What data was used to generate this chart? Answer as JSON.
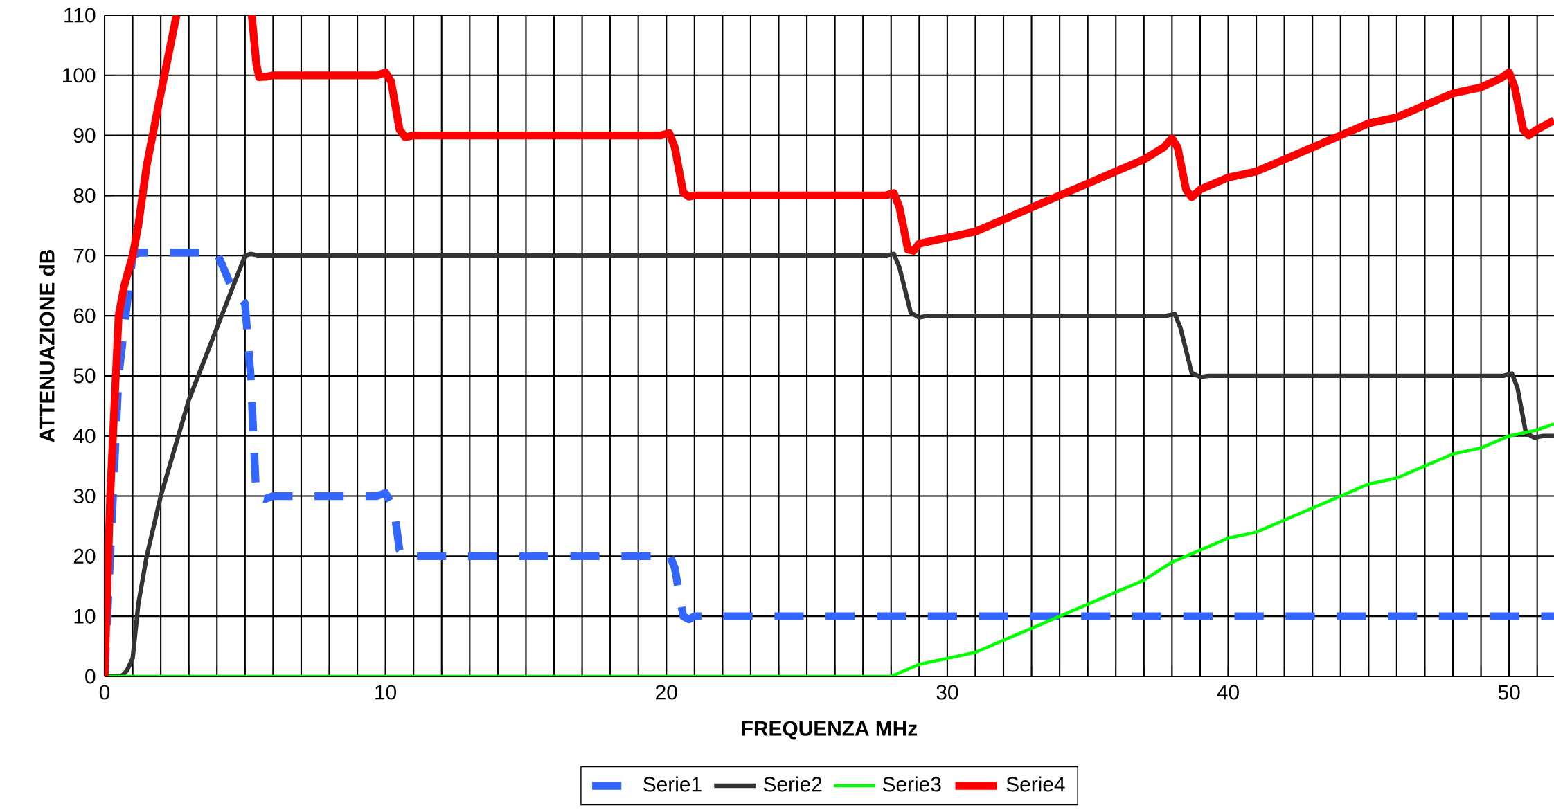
{
  "chart_data": {
    "type": "line",
    "xlabel": "FREQUENZA MHz",
    "ylabel": "ATTENUAZIONE dB",
    "xlim": [
      0,
      51.6
    ],
    "ylim": [
      0,
      110
    ],
    "xticks": [
      0,
      {
        "value": 1,
        "label": null
      },
      {
        "value": 2,
        "label": null
      },
      {
        "value": 3,
        "label": null
      },
      {
        "value": 4,
        "label": null
      },
      {
        "value": 5,
        "label": null
      },
      {
        "value": 6,
        "label": null
      },
      {
        "value": 7,
        "label": null
      },
      {
        "value": 8,
        "label": null
      },
      {
        "value": 9,
        "label": null
      },
      10,
      {
        "value": 11,
        "label": null
      },
      {
        "value": 12,
        "label": null
      },
      {
        "value": 13,
        "label": null
      },
      {
        "value": 14,
        "label": null
      },
      {
        "value": 15,
        "label": null
      },
      {
        "value": 16,
        "label": null
      },
      {
        "value": 17,
        "label": null
      },
      {
        "value": 18,
        "label": null
      },
      {
        "value": 19,
        "label": null
      },
      20,
      {
        "value": 21,
        "label": null
      },
      {
        "value": 22,
        "label": null
      },
      {
        "value": 23,
        "label": null
      },
      {
        "value": 24,
        "label": null
      },
      {
        "value": 25,
        "label": null
      },
      {
        "value": 26,
        "label": null
      },
      {
        "value": 27,
        "label": null
      },
      {
        "value": 28,
        "label": null
      },
      {
        "value": 29,
        "label": null
      },
      30,
      {
        "value": 31,
        "label": null
      },
      {
        "value": 32,
        "label": null
      },
      {
        "value": 33,
        "label": null
      },
      {
        "value": 34,
        "label": null
      },
      {
        "value": 35,
        "label": null
      },
      {
        "value": 36,
        "label": null
      },
      {
        "value": 37,
        "label": null
      },
      {
        "value": 38,
        "label": null
      },
      {
        "value": 39,
        "label": null
      },
      40,
      {
        "value": 41,
        "label": null
      },
      {
        "value": 42,
        "label": null
      },
      {
        "value": 43,
        "label": null
      },
      {
        "value": 44,
        "label": null
      },
      {
        "value": 45,
        "label": null
      },
      {
        "value": 46,
        "label": null
      },
      {
        "value": 47,
        "label": null
      },
      {
        "value": 48,
        "label": null
      },
      {
        "value": 49,
        "label": null
      },
      50,
      {
        "value": 51,
        "label": null
      }
    ],
    "yticks": [
      0,
      10,
      20,
      30,
      40,
      50,
      60,
      70,
      80,
      90,
      100,
      110
    ],
    "grid": true,
    "legend": "bottom",
    "series": [
      {
        "name": "Serie1",
        "color": "#3366ff",
        "line_style": "dashed",
        "x": [
          0,
          0.5,
          1,
          1.2,
          4,
          4.5,
          5,
          5.2,
          5.4,
          5.7,
          6,
          9.7,
          10,
          10.3,
          10.5,
          10.8,
          11,
          19.8,
          20.1,
          20.3,
          20.6,
          20.8,
          21,
          51.6
        ],
        "values": [
          0,
          50,
          70,
          70.5,
          70.5,
          65,
          62,
          50,
          30,
          29.5,
          30,
          30,
          30.5,
          28,
          21,
          19.5,
          20,
          20,
          20.3,
          18,
          10,
          9.5,
          10,
          10
        ]
      },
      {
        "name": "Serie2",
        "color": "#333333",
        "line_style": "solid",
        "x": [
          0,
          0.6,
          0.8,
          1,
          1.2,
          1.5,
          2,
          2.5,
          3,
          3.5,
          4,
          4.5,
          5,
          5.2,
          5.5,
          27.8,
          28.1,
          28.3,
          28.7,
          29,
          29.3,
          37.8,
          38.1,
          38.3,
          38.7,
          39,
          39.3,
          49.8,
          50.1,
          50.3,
          50.6,
          50.9,
          51.2,
          51.6
        ],
        "values": [
          0,
          0,
          1,
          3,
          12,
          20,
          30,
          38,
          46,
          52,
          58,
          64,
          70,
          70.3,
          70,
          70,
          70.3,
          68,
          60.5,
          59.7,
          60,
          60,
          60.3,
          58,
          50.5,
          49.8,
          50,
          50,
          50.4,
          48,
          40.5,
          39.7,
          40,
          40
        ]
      },
      {
        "name": "Serie3",
        "color": "#00ff00",
        "line_style": "solid",
        "x": [
          0,
          28,
          29,
          30,
          31,
          32,
          33,
          34,
          35,
          36,
          37,
          38,
          39,
          40,
          41,
          42,
          43,
          44,
          45,
          46,
          47,
          48,
          49,
          50,
          51,
          51.6
        ],
        "values": [
          0,
          0,
          2,
          3,
          4,
          6,
          8,
          10,
          12,
          14,
          16,
          19,
          21,
          23,
          24,
          26,
          28,
          30,
          32,
          33,
          35,
          37,
          38,
          40,
          41,
          42
        ]
      },
      {
        "name": "Serie4",
        "color": "#ff0000",
        "line_style": "solid",
        "x": [
          0,
          0.2,
          0.4,
          0.5,
          0.7,
          1,
          1.2,
          1.5,
          2,
          2.56,
          4,
          5.24,
          5.4,
          5.5,
          5.8,
          6,
          9.7,
          10,
          10.2,
          10.5,
          10.7,
          11,
          19.8,
          20.1,
          20.3,
          20.6,
          20.8,
          21,
          27.8,
          28.1,
          28.3,
          28.6,
          28.8,
          29,
          30,
          31,
          32,
          33,
          34,
          35,
          36,
          37,
          37.7,
          38,
          38.2,
          38.5,
          38.7,
          39,
          40,
          41,
          42,
          43,
          44,
          45,
          46,
          47,
          48,
          49,
          49.7,
          50,
          50.2,
          50.5,
          50.7,
          51,
          51.6
        ],
        "values": [
          0,
          30,
          50,
          60,
          65,
          70,
          75,
          85,
          97,
          110,
          null,
          110,
          102,
          99.7,
          99.8,
          100,
          100,
          100.5,
          99,
          91,
          89.7,
          90,
          90,
          90.4,
          88,
          80.5,
          79.8,
          80,
          80,
          80.4,
          78,
          71,
          70.8,
          72,
          73,
          74,
          76,
          78,
          80,
          82,
          84,
          86,
          88,
          89.5,
          88,
          81,
          79.7,
          81,
          83,
          84,
          86,
          88,
          90,
          92,
          93,
          95,
          97,
          98,
          99.5,
          100.5,
          98,
          91,
          90,
          91,
          92.5
        ]
      }
    ]
  }
}
